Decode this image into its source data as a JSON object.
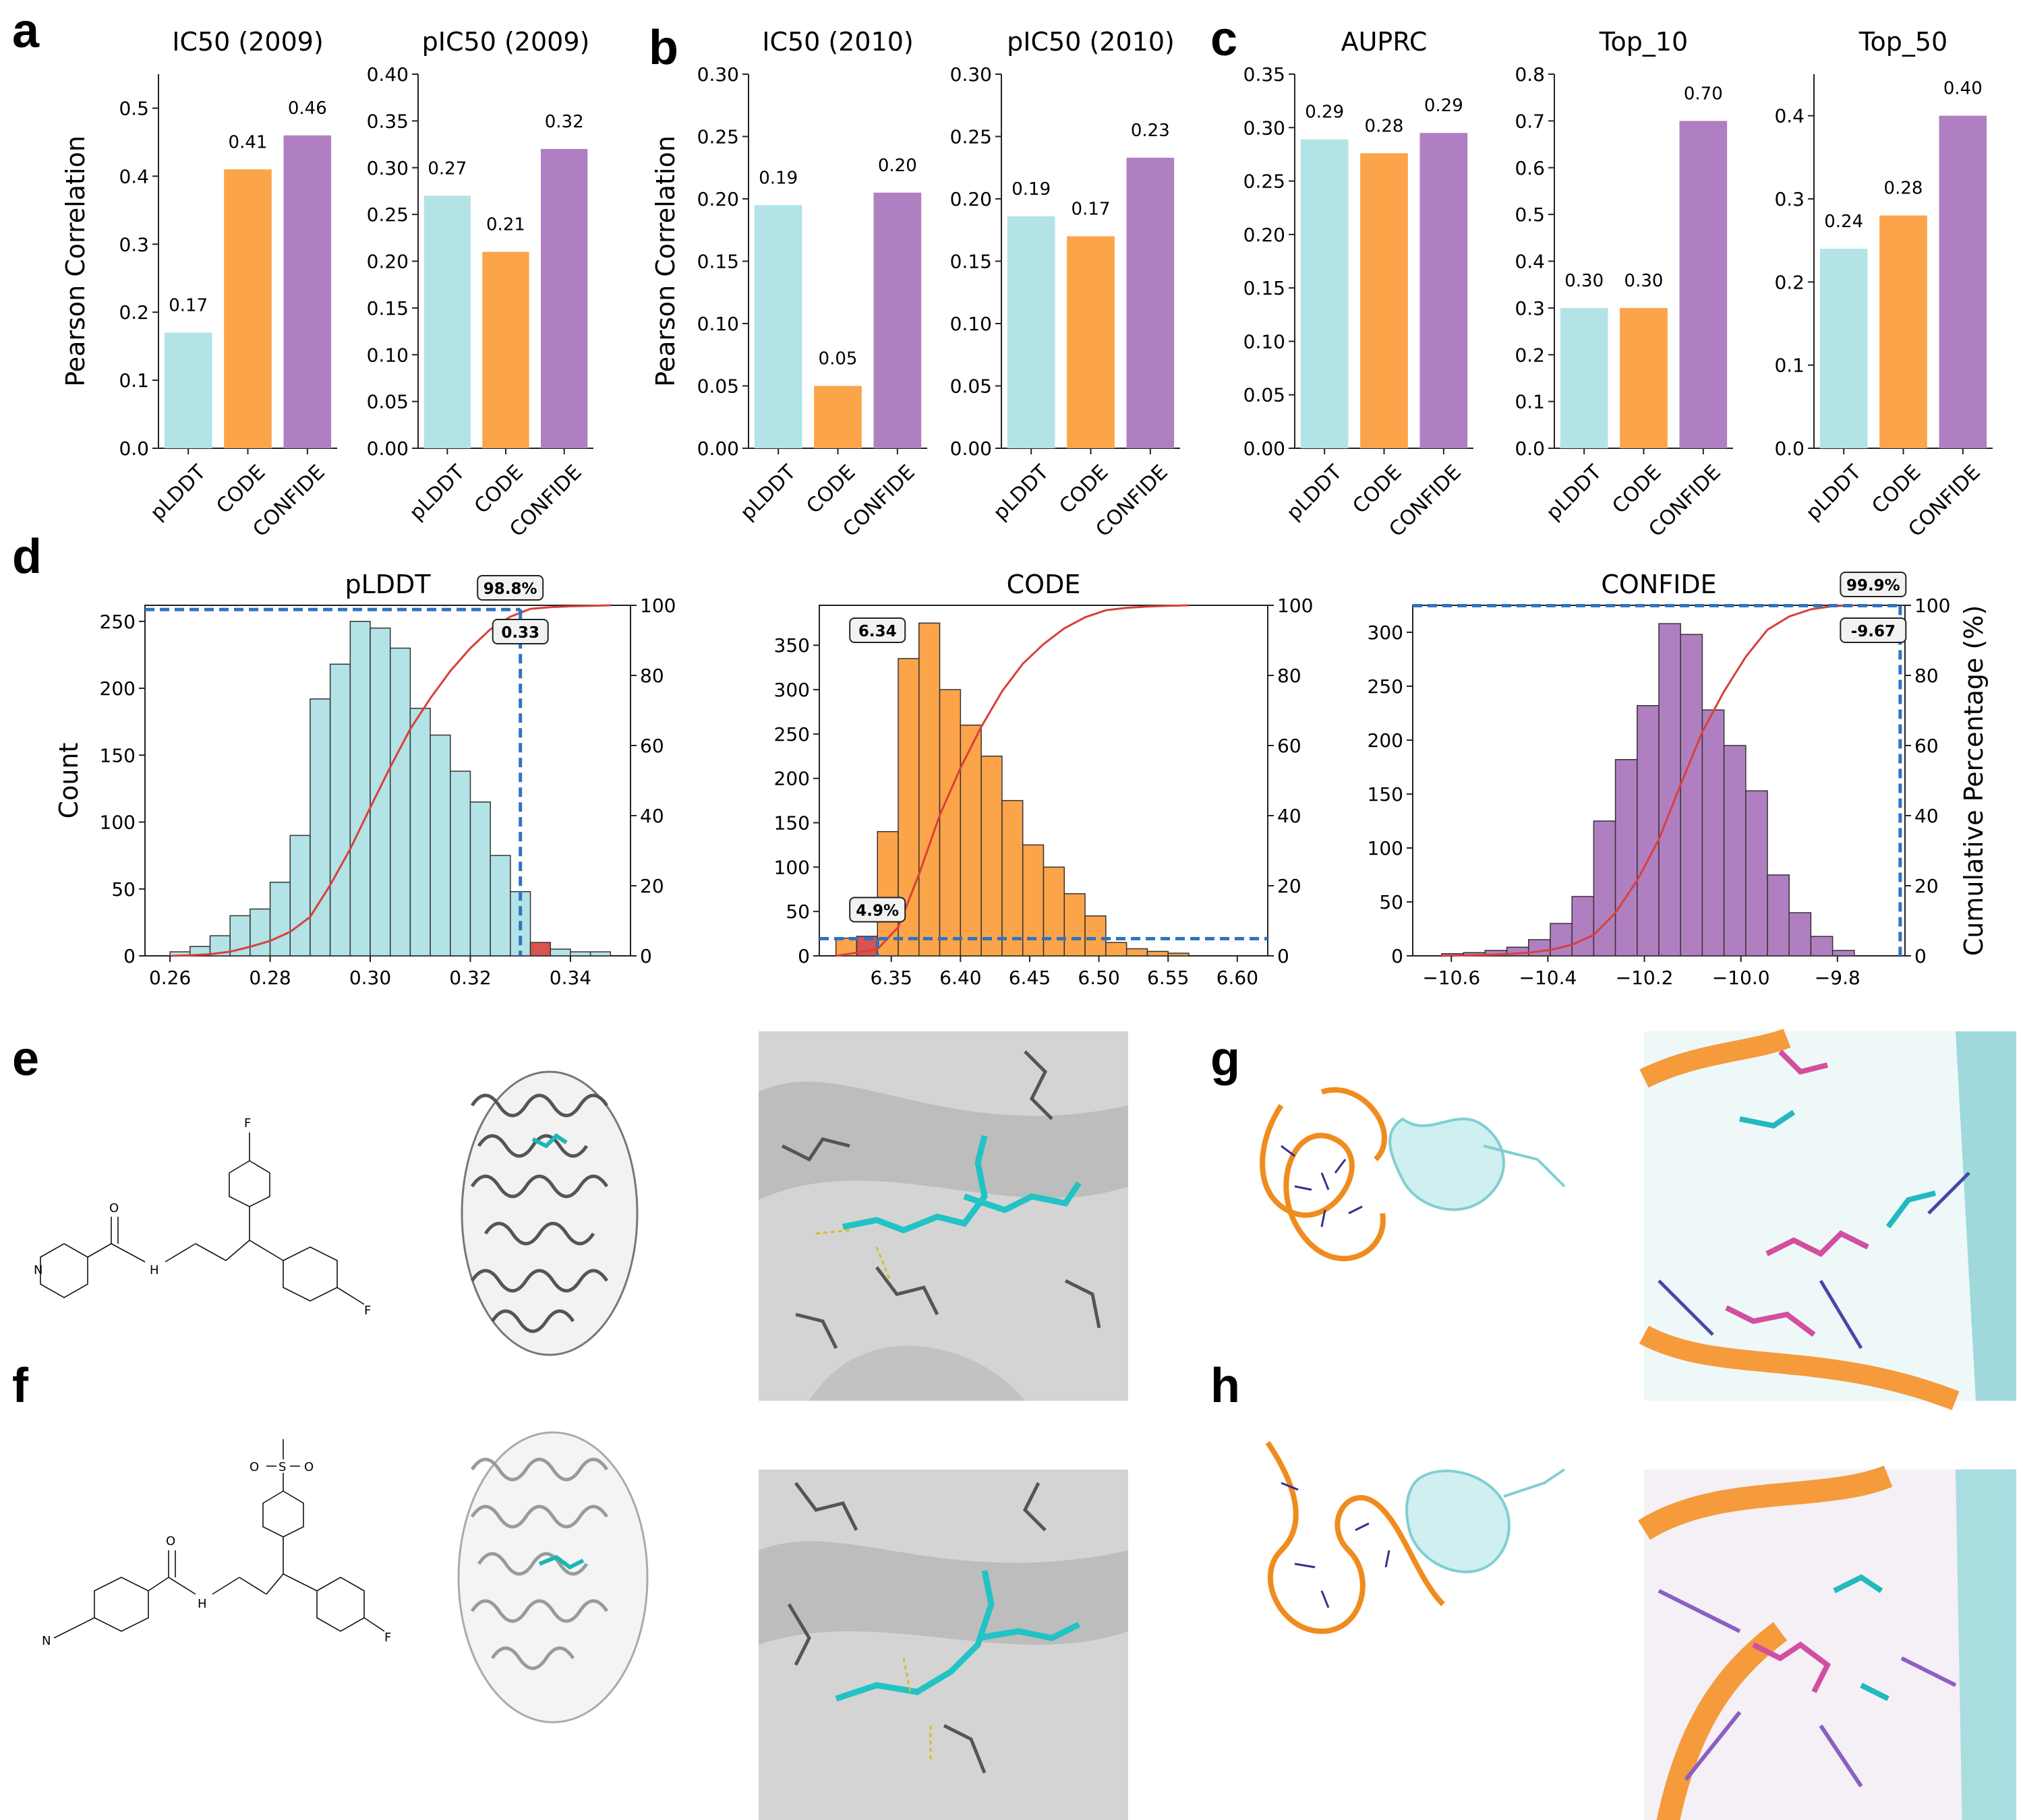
{
  "colors": {
    "plddt": "#b3e3e6",
    "code": "#fca449",
    "confide": "#b07fc1",
    "cdf": "#d9403a",
    "dash": "#2e74c2",
    "red_bar": "#d9534f"
  },
  "panel_letters": [
    "a",
    "b",
    "c",
    "d",
    "e",
    "f",
    "g",
    "h"
  ],
  "top_row": {
    "ylabel": "Pearson Correlation",
    "categories": [
      "pLDDT",
      "CODE",
      "CONFIDE"
    ]
  },
  "chart_data": [
    {
      "type": "bar",
      "panel": "a",
      "title": "IC50 (2009)",
      "categories": [
        "pLDDT",
        "CODE",
        "CONFIDE"
      ],
      "values": [
        0.17,
        0.41,
        0.46
      ],
      "labels": [
        "0.17",
        "0.41",
        "0.46"
      ],
      "ylim": [
        0,
        0.55
      ],
      "yticks": [
        "0.0",
        "0.1",
        "0.2",
        "0.3",
        "0.4",
        "0.5"
      ],
      "ylabel": "Pearson Correlation"
    },
    {
      "type": "bar",
      "panel": "a",
      "title": "pIC50 (2009)",
      "categories": [
        "pLDDT",
        "CODE",
        "CONFIDE"
      ],
      "values": [
        0.27,
        0.21,
        0.32
      ],
      "labels": [
        "0.27",
        "0.21",
        "0.32"
      ],
      "ylim": [
        0,
        0.4
      ],
      "yticks": [
        "0.00",
        "0.05",
        "0.10",
        "0.15",
        "0.20",
        "0.25",
        "0.30",
        "0.35",
        "0.40"
      ]
    },
    {
      "type": "bar",
      "panel": "b",
      "title": "IC50 (2010)",
      "categories": [
        "pLDDT",
        "CODE",
        "CONFIDE"
      ],
      "values": [
        0.195,
        0.05,
        0.205
      ],
      "labels": [
        "0.19",
        "0.05",
        "0.20"
      ],
      "ylim": [
        0,
        0.3
      ],
      "yticks": [
        "0.00",
        "0.05",
        "0.10",
        "0.15",
        "0.20",
        "0.25",
        "0.30"
      ],
      "ylabel": "Pearson Correlation"
    },
    {
      "type": "bar",
      "panel": "b",
      "title": "pIC50 (2010)",
      "categories": [
        "pLDDT",
        "CODE",
        "CONFIDE"
      ],
      "values": [
        0.186,
        0.17,
        0.233
      ],
      "labels": [
        "0.19",
        "0.17",
        "0.23"
      ],
      "ylim": [
        0,
        0.3
      ],
      "yticks": [
        "0.00",
        "0.05",
        "0.10",
        "0.15",
        "0.20",
        "0.25",
        "0.30"
      ]
    },
    {
      "type": "bar",
      "panel": "c",
      "title": "AUPRC",
      "categories": [
        "pLDDT",
        "CODE",
        "CONFIDE"
      ],
      "values": [
        0.289,
        0.276,
        0.295
      ],
      "labels": [
        "0.29",
        "0.28",
        "0.29"
      ],
      "ylim": [
        0,
        0.35
      ],
      "yticks": [
        "0.00",
        "0.05",
        "0.10",
        "0.15",
        "0.20",
        "0.25",
        "0.30",
        "0.35"
      ]
    },
    {
      "type": "bar",
      "panel": "c",
      "title": "Top_10",
      "categories": [
        "pLDDT",
        "CODE",
        "CONFIDE"
      ],
      "values": [
        0.3,
        0.3,
        0.7
      ],
      "labels": [
        "0.30",
        "0.30",
        "0.70"
      ],
      "ylim": [
        0,
        0.8
      ],
      "yticks": [
        "0.0",
        "0.1",
        "0.2",
        "0.3",
        "0.4",
        "0.5",
        "0.6",
        "0.7",
        "0.8"
      ]
    },
    {
      "type": "bar",
      "panel": "c",
      "title": "Top_50",
      "categories": [
        "pLDDT",
        "CODE",
        "CONFIDE"
      ],
      "values": [
        0.24,
        0.28,
        0.4
      ],
      "labels": [
        "0.24",
        "0.28",
        "0.40"
      ],
      "ylim": [
        0,
        0.45
      ],
      "yticks": [
        "0.0",
        "0.1",
        "0.2",
        "0.3",
        "0.4"
      ]
    },
    {
      "type": "histogram",
      "panel": "d",
      "title": "pLDDT",
      "color_key": "plddt",
      "ylabel": "Count",
      "bin_start": 0.26,
      "bin_width": 0.004,
      "counts": [
        3,
        7,
        15,
        30,
        35,
        55,
        90,
        192,
        218,
        250,
        245,
        230,
        185,
        165,
        138,
        115,
        75,
        48,
        10,
        5,
        3,
        3
      ],
      "highlight_bins": [
        18
      ],
      "xlim": [
        0.255,
        0.352
      ],
      "xticks": [
        0.26,
        0.28,
        0.3,
        0.32,
        0.34
      ],
      "xtick_labels": [
        "0.26",
        "0.28",
        "0.30",
        "0.32",
        "0.34"
      ],
      "ylim": [
        0,
        262
      ],
      "yticks": [
        0,
        50,
        100,
        150,
        200,
        250
      ],
      "ytick_labels": [
        "0",
        "50",
        "100",
        "150",
        "200",
        "250"
      ],
      "y2ticks": [
        0,
        20,
        40,
        60,
        80,
        100
      ],
      "y2tick_labels": [
        "0",
        "20",
        "40",
        "60",
        "80",
        "100"
      ],
      "threshold": 0.33,
      "threshold_label": "0.33",
      "pct": 98.8,
      "pct_label": "98.8%"
    },
    {
      "type": "histogram",
      "panel": "d",
      "title": "CODE",
      "color_key": "code",
      "bin_start": 6.31,
      "bin_width": 0.015,
      "counts": [
        20,
        22,
        140,
        335,
        375,
        300,
        260,
        225,
        175,
        125,
        100,
        70,
        45,
        15,
        8,
        5,
        3
      ],
      "highlight_bins": [
        1
      ],
      "xlim": [
        6.298,
        6.622
      ],
      "xticks": [
        6.35,
        6.4,
        6.45,
        6.5,
        6.55,
        6.6
      ],
      "xtick_labels": [
        "6.35",
        "6.40",
        "6.45",
        "6.50",
        "6.55",
        "6.60"
      ],
      "ylim": [
        0,
        395
      ],
      "yticks": [
        0,
        50,
        100,
        150,
        200,
        250,
        300,
        350
      ],
      "ytick_labels": [
        "0",
        "50",
        "100",
        "150",
        "200",
        "250",
        "300",
        "350"
      ],
      "y2ticks": [
        0,
        20,
        40,
        60,
        80,
        100
      ],
      "y2tick_labels": [
        "0",
        "20",
        "40",
        "60",
        "80",
        "100"
      ],
      "threshold": 6.34,
      "threshold_label": "6.34",
      "pct": 4.9,
      "pct_label": "4.9%"
    },
    {
      "type": "histogram",
      "panel": "d",
      "title": "CONFIDE",
      "color_key": "confide",
      "ylabel2": "Cumulative Percentage (%)",
      "bin_start": -10.62,
      "bin_width": 0.045,
      "counts": [
        2,
        3,
        5,
        8,
        15,
        30,
        55,
        125,
        182,
        232,
        308,
        298,
        228,
        195,
        153,
        75,
        40,
        18,
        5
      ],
      "highlight_bins": [],
      "xlim": [
        -10.68,
        -9.66
      ],
      "xticks": [
        -10.6,
        -10.4,
        -10.2,
        -10.0,
        -9.8
      ],
      "xtick_labels": [
        "−10.6",
        "−10.4",
        "−10.2",
        "−10.0",
        "−9.8"
      ],
      "ylim": [
        0,
        325
      ],
      "yticks": [
        0,
        50,
        100,
        150,
        200,
        250,
        300
      ],
      "ytick_labels": [
        "0",
        "50",
        "100",
        "150",
        "200",
        "250",
        "300"
      ],
      "y2ticks": [
        0,
        20,
        40,
        60,
        80,
        100
      ],
      "y2tick_labels": [
        "0",
        "20",
        "40",
        "60",
        "80",
        "100"
      ],
      "threshold": -9.67,
      "threshold_label": "-9.67",
      "pct": 99.9,
      "pct_label": "99.9%"
    }
  ],
  "molecules": {
    "e_atoms": [
      "F",
      "F",
      "N",
      "O",
      "H"
    ],
    "f_atoms": [
      "O",
      "S",
      "O",
      "N",
      "O",
      "H",
      "F"
    ]
  }
}
